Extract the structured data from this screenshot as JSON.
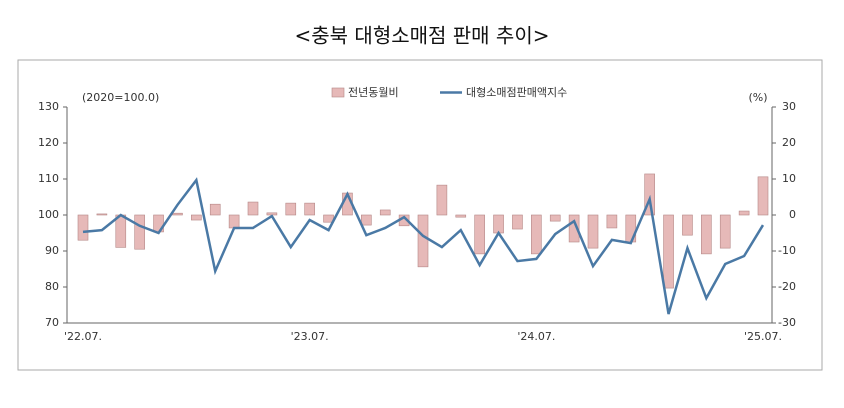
{
  "chart_data": {
    "type": "bar-line",
    "title": "<충북 대형소매점 판매 추이>",
    "y_unit_label": "(2020=100.0)",
    "y2_unit_label": "(%)",
    "categories": [
      "'22.07.",
      null,
      null,
      null,
      null,
      null,
      null,
      null,
      null,
      null,
      null,
      null,
      "'23.07.",
      null,
      null,
      null,
      null,
      null,
      null,
      null,
      null,
      null,
      null,
      null,
      "'24.07.",
      null,
      null,
      null,
      null,
      null,
      null,
      null,
      null,
      null,
      null,
      null,
      "'25.07."
    ],
    "ylim": [
      70,
      130
    ],
    "yticks": [
      70,
      80,
      90,
      100,
      110,
      120,
      130
    ],
    "y2lim": [
      -30,
      30
    ],
    "y2ticks": [
      -30,
      -20,
      -10,
      0,
      10,
      20,
      30
    ],
    "series": [
      {
        "name": "전년동월비",
        "type": "bar",
        "axis": "y2",
        "color": "#e6b9b8",
        "values": [
          -7,
          0.3,
          -9,
          -9.5,
          -4.7,
          0.5,
          -1.4,
          3,
          -3.6,
          3.6,
          0.6,
          3.3,
          3.3,
          -2,
          6.1,
          -2.8,
          1.4,
          -3,
          -14.4,
          8.3,
          -0.6,
          -10.8,
          -5,
          -3.9,
          -10.8,
          -1.7,
          -7.5,
          -9.2,
          -3.6,
          -7.5,
          11.4,
          -20.3,
          -5.6,
          -10.8,
          -9.2,
          1.1,
          10.6
        ]
      },
      {
        "name": "대형소매점판매액지수",
        "type": "line",
        "color": "#4a79a5",
        "values": [
          95.3,
          95.8,
          100,
          97,
          95,
          102.8,
          109.7,
          84.4,
          96.4,
          96.4,
          99.7,
          91.1,
          98.6,
          95.8,
          105.8,
          94.4,
          96.4,
          99.4,
          94.2,
          91.1,
          95.8,
          86.1,
          95,
          87.2,
          87.8,
          94.7,
          98.3,
          85.8,
          93.1,
          92.2,
          104.4,
          72.5,
          90.8,
          76.9,
          86.4,
          88.6,
          97.2
        ]
      }
    ]
  }
}
